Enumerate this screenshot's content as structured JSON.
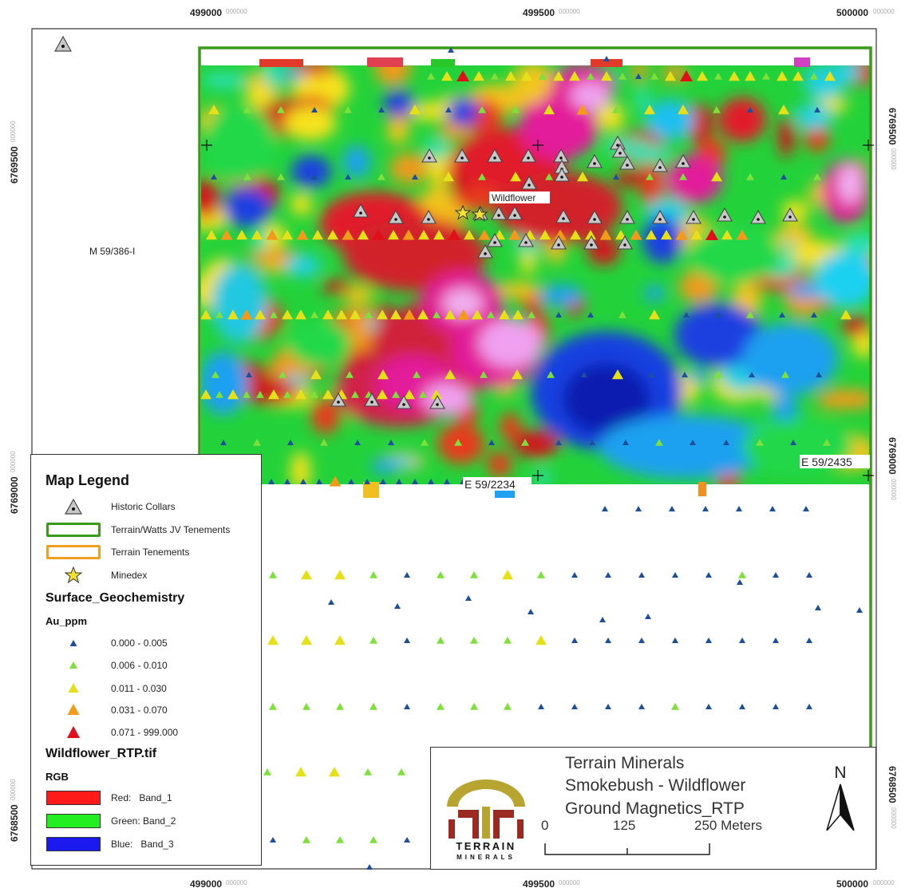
{
  "axes": {
    "x_ticks": [
      {
        "value": "499000",
        "suffix": "000000"
      },
      {
        "value": "499500",
        "suffix": "000000"
      },
      {
        "value": "500000",
        "suffix": "000000"
      }
    ],
    "y_ticks": [
      {
        "value": "6769500",
        "suffix": "000000"
      },
      {
        "value": "6769000",
        "suffix": "000000"
      },
      {
        "value": "6768500",
        "suffix": "000000"
      }
    ]
  },
  "map_labels": {
    "wildflower": "Wildflower",
    "m59": "M 59/386-I",
    "e2234": "E 59/2234",
    "e2435": "E 59/2435"
  },
  "legend": {
    "title": "Map Legend",
    "items": [
      {
        "label": "Historic Collars",
        "icon": "historic-collar-icon"
      },
      {
        "label": "Terrain/Watts JV Tenements",
        "color": "#3a9a1a"
      },
      {
        "label": "Terrain Tenements",
        "color": "#f0a020"
      },
      {
        "label": "Minedex",
        "icon": "star-icon",
        "color": "#f2e033"
      }
    ],
    "geochem_title": "Surface_Geochemistry",
    "geochem_field": "Au_ppm",
    "classes": [
      {
        "label": "0.000 - 0.005",
        "color": "#1d4f9c"
      },
      {
        "label": "0.006 - 0.010",
        "color": "#7ee03a"
      },
      {
        "label": "0.011 - 0.030",
        "color": "#e6e01a"
      },
      {
        "label": "0.031 - 0.070",
        "color": "#f29a1a"
      },
      {
        "label": "0.071 - 999.000",
        "color": "#e0101a"
      }
    ],
    "raster_title": "Wildflower_RTP.tif",
    "raster_mode": "RGB",
    "bands": [
      {
        "label": "Red:   Band_1",
        "color": "#ff1a1a"
      },
      {
        "label": "Green: Band_2",
        "color": "#22ee22"
      },
      {
        "label": "Blue:   Band_3",
        "color": "#1a1aee"
      }
    ]
  },
  "title_block": {
    "line1": "Terrain Minerals",
    "line2": "Smokebush - Wildflower",
    "line3": "Ground Magnetics_RTP",
    "logo_word1": "TERRAIN",
    "logo_word2": "MINERALS",
    "north": "N",
    "scale": {
      "zero": "0",
      "mid": "125",
      "end": "250 Meters"
    }
  },
  "colors": {
    "frame": "#333333",
    "jv_tenement": "#3a9a1a",
    "logo_gold": "#b8a431",
    "logo_red": "#9a2a22"
  }
}
